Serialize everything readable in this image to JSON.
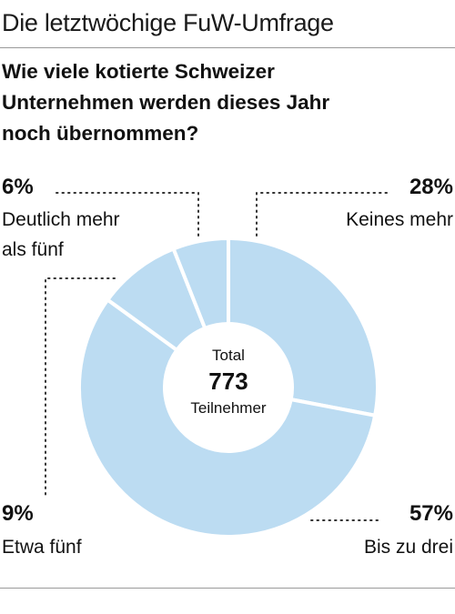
{
  "header": {
    "kicker": "Die letztwöchige FuW-Umfrage",
    "question_lines": [
      "Wie viele kotierte Schweizer",
      "Unternehmen werden dieses Jahr",
      "noch übernommen?"
    ]
  },
  "chart_data": {
    "type": "pie",
    "style": "donut",
    "title": "Wie viele kotierte Schweizer Unternehmen werden dieses Jahr noch übernommen?",
    "slices": [
      {
        "label": "Keines mehr",
        "value": 28,
        "value_label": "28%"
      },
      {
        "label": "Bis zu drei",
        "value": 57,
        "value_label": "57%"
      },
      {
        "label": "Etwa fünf",
        "value": 9,
        "value_label": "9%"
      },
      {
        "label": "Deutlich mehr als fünf",
        "label_lines": [
          "Deutlich mehr",
          "als fünf"
        ],
        "value": 6,
        "value_label": "6%"
      }
    ],
    "start": "12 o'clock",
    "direction": "clockwise",
    "center": {
      "top": "Total",
      "value": "773",
      "bottom": "Teilnehmer"
    },
    "colors": {
      "slice_fill": "#bcdcf2",
      "slice_separator": "#ffffff",
      "leader_lines": "#333333"
    }
  }
}
